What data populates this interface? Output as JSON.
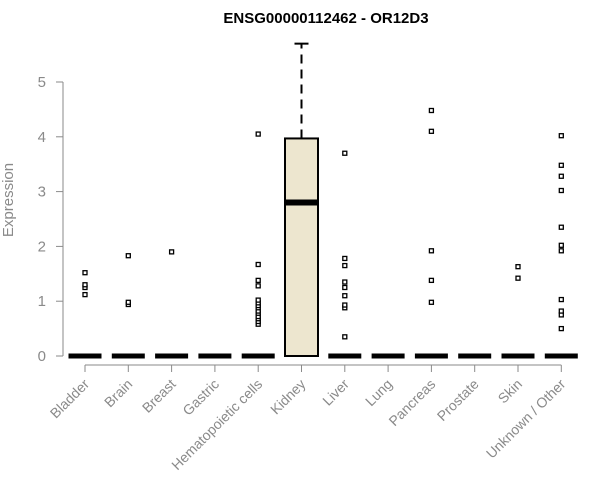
{
  "chart_data": {
    "type": "box",
    "title": "ENSG00000112462 - OR12D3",
    "ylabel": "Expression",
    "xlabel": "",
    "ylim": [
      0,
      5.7
    ],
    "yticks": [
      0,
      1,
      2,
      3,
      4,
      5
    ],
    "grid": false,
    "box_fill": "#ede6cf",
    "categories": [
      "Bladder",
      "Brain",
      "Breast",
      "Gastric",
      "Hematopoietic cells",
      "Kidney",
      "Liver",
      "Lung",
      "Pancreas",
      "Prostate",
      "Skin",
      "Unknown / Other"
    ],
    "boxes": [
      {
        "category": "Bladder",
        "q1": 0,
        "median": 0,
        "q3": 0,
        "whisker_low": 0,
        "whisker_high": 0,
        "outliers": [
          1.12,
          1.25,
          1.3,
          1.52
        ]
      },
      {
        "category": "Brain",
        "q1": 0,
        "median": 0,
        "q3": 0,
        "whisker_low": 0,
        "whisker_high": 0,
        "outliers": [
          0.94,
          0.98,
          1.83
        ]
      },
      {
        "category": "Breast",
        "q1": 0,
        "median": 0,
        "q3": 0,
        "whisker_low": 0,
        "whisker_high": 0,
        "outliers": [
          1.9
        ]
      },
      {
        "category": "Gastric",
        "q1": 0,
        "median": 0,
        "q3": 0,
        "whisker_low": 0,
        "whisker_high": 0,
        "outliers": []
      },
      {
        "category": "Hematopoietic cells",
        "q1": 0,
        "median": 0,
        "q3": 0,
        "whisker_low": 0,
        "whisker_high": 0,
        "outliers": [
          0.58,
          0.63,
          0.68,
          0.72,
          0.78,
          0.82,
          0.88,
          0.92,
          0.97,
          1.02,
          1.28,
          1.38,
          1.67,
          4.05
        ]
      },
      {
        "category": "Kidney",
        "q1": 0,
        "median": 2.8,
        "q3": 3.97,
        "whisker_low": 0,
        "whisker_high": 5.7,
        "outliers": []
      },
      {
        "category": "Liver",
        "q1": 0,
        "median": 0,
        "q3": 0,
        "whisker_low": 0,
        "whisker_high": 0,
        "outliers": [
          0.35,
          0.88,
          0.93,
          1.1,
          1.25,
          1.35,
          1.65,
          1.78,
          3.7
        ]
      },
      {
        "category": "Lung",
        "q1": 0,
        "median": 0,
        "q3": 0,
        "whisker_low": 0,
        "whisker_high": 0,
        "outliers": []
      },
      {
        "category": "Pancreas",
        "q1": 0,
        "median": 0,
        "q3": 0,
        "whisker_low": 0,
        "whisker_high": 0,
        "outliers": [
          0.98,
          1.38,
          1.92,
          4.1,
          4.48
        ]
      },
      {
        "category": "Prostate",
        "q1": 0,
        "median": 0,
        "q3": 0,
        "whisker_low": 0,
        "whisker_high": 0,
        "outliers": []
      },
      {
        "category": "Skin",
        "q1": 0,
        "median": 0,
        "q3": 0,
        "whisker_low": 0,
        "whisker_high": 0,
        "outliers": [
          1.42,
          1.63
        ]
      },
      {
        "category": "Unknown / Other",
        "q1": 0,
        "median": 0,
        "q3": 0,
        "whisker_low": 0,
        "whisker_high": 0,
        "outliers": [
          0.5,
          0.75,
          0.82,
          1.03,
          1.92,
          2.02,
          2.35,
          3.02,
          3.28,
          3.48,
          4.02
        ]
      }
    ]
  }
}
